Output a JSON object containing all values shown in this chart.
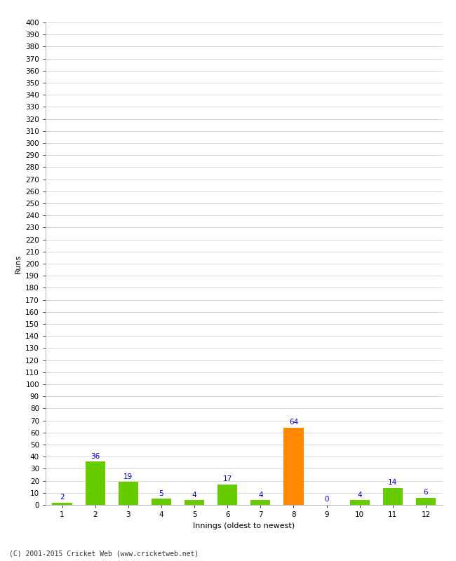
{
  "xlabel": "Innings (oldest to newest)",
  "ylabel": "Runs",
  "categories": [
    1,
    2,
    3,
    4,
    5,
    6,
    7,
    8,
    9,
    10,
    11,
    12
  ],
  "values": [
    2,
    36,
    19,
    5,
    4,
    17,
    4,
    64,
    0,
    4,
    14,
    6
  ],
  "bar_colors": [
    "#66cc00",
    "#66cc00",
    "#66cc00",
    "#66cc00",
    "#66cc00",
    "#66cc00",
    "#66cc00",
    "#ff8800",
    "#66cc00",
    "#66cc00",
    "#66cc00",
    "#66cc00"
  ],
  "ylim": [
    0,
    400
  ],
  "yticks": [
    0,
    10,
    20,
    30,
    40,
    50,
    60,
    70,
    80,
    90,
    100,
    110,
    120,
    130,
    140,
    150,
    160,
    170,
    180,
    190,
    200,
    210,
    220,
    230,
    240,
    250,
    260,
    270,
    280,
    290,
    300,
    310,
    320,
    330,
    340,
    350,
    360,
    370,
    380,
    390,
    400
  ],
  "label_color": "#0000cc",
  "label_fontsize": 7.5,
  "axis_label_fontsize": 8,
  "tick_fontsize": 7.5,
  "footer": "(C) 2001-2015 Cricket Web (www.cricketweb.net)",
  "background_color": "#ffffff",
  "grid_color": "#cccccc",
  "bar_edge_color": "#000000"
}
